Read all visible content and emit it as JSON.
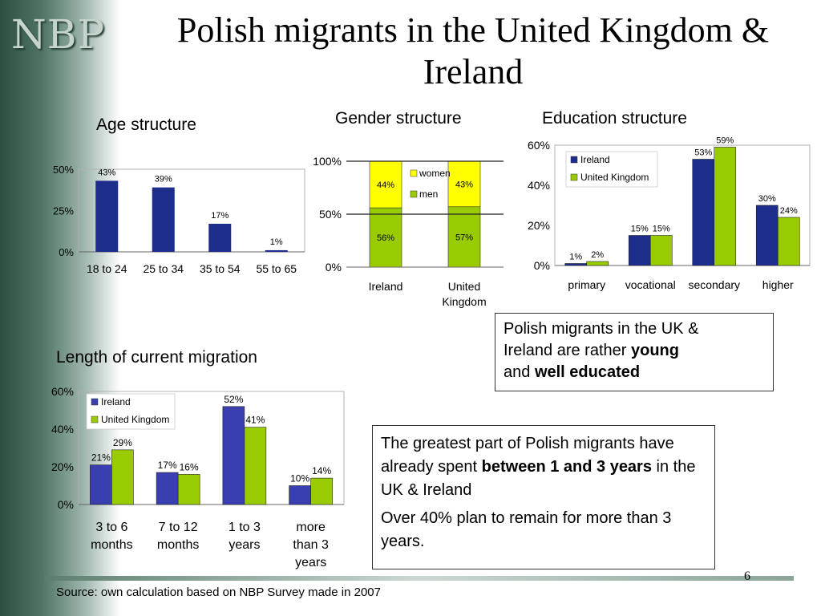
{
  "logo": "NBP",
  "title_line1": "Polish migrants in the United Kingdom &",
  "title_line2": "Ireland",
  "page_number": "6",
  "source": "Source: own calculation based on NBP Survey made in 2007",
  "summary_box": {
    "line1": "Polish migrants in the UK &",
    "line2_pre": "Ireland are rather ",
    "line2_bold": "young",
    "line3_pre": "and ",
    "line3_bold": "well educated"
  },
  "migration_box": {
    "p1_pre": "The greatest part of Polish migrants have already spent ",
    "p1_bold": "between 1 and 3 years",
    "p1_post": " in the UK & Ireland",
    "p2": "Over 40% plan to remain for more than 3 years."
  },
  "colors": {
    "ireland": "#1c2d8c",
    "uk": "#99cc00",
    "women": "#ffff00",
    "men": "#99cc00",
    "ireland_light": "#3a3fb0"
  },
  "chart_data": [
    {
      "id": "age",
      "type": "bar",
      "title": "Age structure",
      "categories": [
        "18 to 24",
        "25 to 34",
        "35 to 54",
        "55 to 65"
      ],
      "values": [
        43,
        39,
        17,
        1
      ],
      "value_labels": [
        "43%",
        "39%",
        "17%",
        "1%"
      ],
      "yticks": [
        "0%",
        "25%",
        "50%"
      ],
      "ylim": [
        0,
        50
      ]
    },
    {
      "id": "gender",
      "type": "bar",
      "stacked": true,
      "title": "Gender structure",
      "categories": [
        "Ireland",
        "United Kingdom"
      ],
      "series": [
        {
          "name": "men",
          "values": [
            56,
            57
          ],
          "labels": [
            "56%",
            "57%"
          ]
        },
        {
          "name": "women",
          "values": [
            44,
            43
          ],
          "labels": [
            "44%",
            "43%"
          ]
        }
      ],
      "yticks": [
        "0%",
        "50%",
        "100%"
      ],
      "ylim": [
        0,
        100
      ]
    },
    {
      "id": "education",
      "type": "bar",
      "title": "Education structure",
      "categories": [
        "primary",
        "vocational",
        "secondary",
        "higher"
      ],
      "series": [
        {
          "name": "Ireland",
          "values": [
            1,
            15,
            53,
            30
          ],
          "labels": [
            "1%",
            "15%",
            "53%",
            "30%"
          ]
        },
        {
          "name": "United Kingdom",
          "values": [
            2,
            15,
            59,
            24
          ],
          "labels": [
            "2%",
            "15%",
            "59%",
            "24%"
          ]
        }
      ],
      "yticks": [
        "0%",
        "20%",
        "40%",
        "60%"
      ],
      "ylim": [
        0,
        60
      ],
      "legend": "top-left"
    },
    {
      "id": "length",
      "type": "bar",
      "title": "Length of current migration",
      "categories": [
        "3 to 6 months",
        "7 to 12 months",
        "1 to 3 years",
        "more than 3 years"
      ],
      "series": [
        {
          "name": "Ireland",
          "values": [
            21,
            17,
            52,
            10
          ],
          "labels": [
            "21%",
            "17%",
            "52%",
            "10%"
          ]
        },
        {
          "name": "United Kingdom",
          "values": [
            29,
            16,
            41,
            14
          ],
          "labels": [
            "29%",
            "16%",
            "41%",
            "14%"
          ]
        }
      ],
      "yticks": [
        "0%",
        "20%",
        "40%",
        "60%"
      ],
      "ylim": [
        0,
        60
      ],
      "legend": "top-left"
    }
  ]
}
